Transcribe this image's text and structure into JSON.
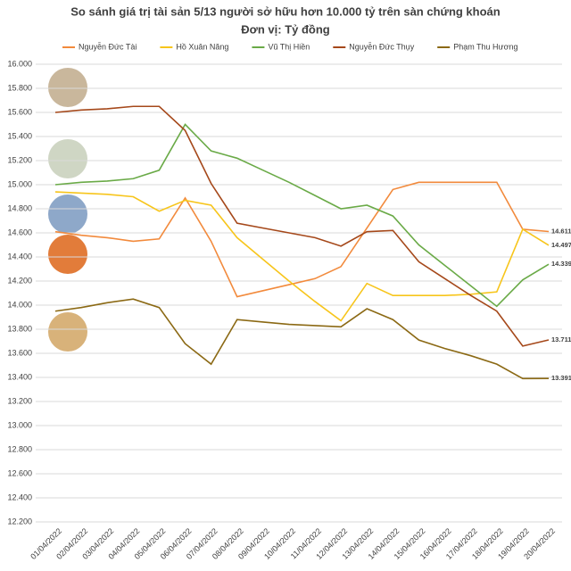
{
  "chart_data": {
    "type": "line",
    "title": "So sánh giá trị tài sản 5/13 người sở hữu hơn 10.000 tỷ trên sàn chứng khoán",
    "subtitle": "Đơn vị: Tỷ đồng",
    "categories": [
      "01/04/2022",
      "02/04/2022",
      "03/04/2022",
      "04/04/2022",
      "05/04/2022",
      "06/04/2022",
      "07/04/2022",
      "08/04/2022",
      "09/04/2022",
      "10/04/2022",
      "11/04/2022",
      "12/04/2022",
      "13/04/2022",
      "14/04/2022",
      "15/04/2022",
      "16/04/2022",
      "17/04/2022",
      "18/04/2022",
      "19/04/2022",
      "20/04/2022"
    ],
    "series": [
      {
        "name": "Nguyễn Đức Tài",
        "color": "#f28a3c",
        "values": [
          14610,
          14580,
          14560,
          14530,
          14550,
          14890,
          14530,
          14070,
          14120,
          14170,
          14220,
          14320,
          14640,
          14960,
          15020,
          15020,
          15020,
          15020,
          14630,
          14611
        ],
        "value_labels": [
          null,
          null,
          null,
          null,
          null,
          null,
          null,
          null,
          null,
          null,
          null,
          null,
          null,
          null,
          null,
          null,
          null,
          null,
          null,
          "14.611"
        ]
      },
      {
        "name": "Hồ Xuân Năng",
        "color": "#f7c51b",
        "values": [
          14940,
          14930,
          14920,
          14900,
          14780,
          14870,
          14830,
          14560,
          14380,
          14200,
          14030,
          13870,
          14180,
          14080,
          14080,
          14080,
          14090,
          14110,
          14630,
          14497
        ],
        "value_labels": [
          null,
          null,
          null,
          null,
          null,
          null,
          null,
          null,
          null,
          null,
          null,
          null,
          null,
          null,
          null,
          null,
          null,
          null,
          null,
          "14.497"
        ]
      },
      {
        "name": "Vũ Thị Hiền",
        "color": "#6aaa47",
        "values": [
          15000,
          15020,
          15030,
          15050,
          15120,
          15500,
          15280,
          15220,
          15120,
          15020,
          14910,
          14800,
          14830,
          14740,
          14500,
          14330,
          14160,
          13990,
          14210,
          14339
        ],
        "value_labels": [
          null,
          null,
          null,
          null,
          null,
          null,
          null,
          null,
          null,
          null,
          null,
          null,
          null,
          null,
          null,
          null,
          null,
          null,
          null,
          "14.339"
        ]
      },
      {
        "name": "Nguyễn Đức Thụy",
        "color": "#a5481a",
        "values": [
          15600,
          15620,
          15630,
          15650,
          15650,
          15450,
          15010,
          14680,
          14640,
          14600,
          14560,
          14490,
          14610,
          14620,
          14360,
          14220,
          14080,
          13950,
          13660,
          13711
        ],
        "value_labels": [
          null,
          null,
          null,
          null,
          null,
          null,
          null,
          null,
          null,
          null,
          null,
          null,
          null,
          null,
          null,
          null,
          null,
          null,
          null,
          "13.711"
        ]
      },
      {
        "name": "Phạm Thu Hương",
        "color": "#8b6914",
        "values": [
          13950,
          13980,
          14020,
          14050,
          13980,
          13680,
          13510,
          13880,
          13860,
          13840,
          13830,
          13820,
          13970,
          13880,
          13710,
          13640,
          13580,
          13510,
          13390,
          13391
        ],
        "value_labels": [
          null,
          null,
          null,
          null,
          null,
          null,
          null,
          null,
          null,
          null,
          null,
          null,
          null,
          null,
          null,
          null,
          null,
          null,
          null,
          "13.391"
        ]
      }
    ],
    "ylim": [
      12200,
      16000
    ],
    "yticks": [
      {
        "value": 12200,
        "label": "12.200"
      },
      {
        "value": 12400,
        "label": "12.400"
      },
      {
        "value": 12600,
        "label": "12.600"
      },
      {
        "value": 12800,
        "label": "12.800"
      },
      {
        "value": 13000,
        "label": "13.000"
      },
      {
        "value": 13200,
        "label": "13.200"
      },
      {
        "value": 13400,
        "label": "13.400"
      },
      {
        "value": 13600,
        "label": "13.600"
      },
      {
        "value": 13800,
        "label": "13.800"
      },
      {
        "value": 14000,
        "label": "14.000"
      },
      {
        "value": 14200,
        "label": "14.200"
      },
      {
        "value": 14400,
        "label": "14.400"
      },
      {
        "value": 14600,
        "label": "14.600"
      },
      {
        "value": 14800,
        "label": "14.800"
      },
      {
        "value": 15000,
        "label": "15.000"
      },
      {
        "value": 15200,
        "label": "15.200"
      },
      {
        "value": 15400,
        "label": "15.400"
      },
      {
        "value": 15600,
        "label": "15.600"
      },
      {
        "value": 15800,
        "label": "15.800"
      },
      {
        "value": 16000,
        "label": "16.000"
      }
    ],
    "grid": true,
    "legend": "top"
  }
}
